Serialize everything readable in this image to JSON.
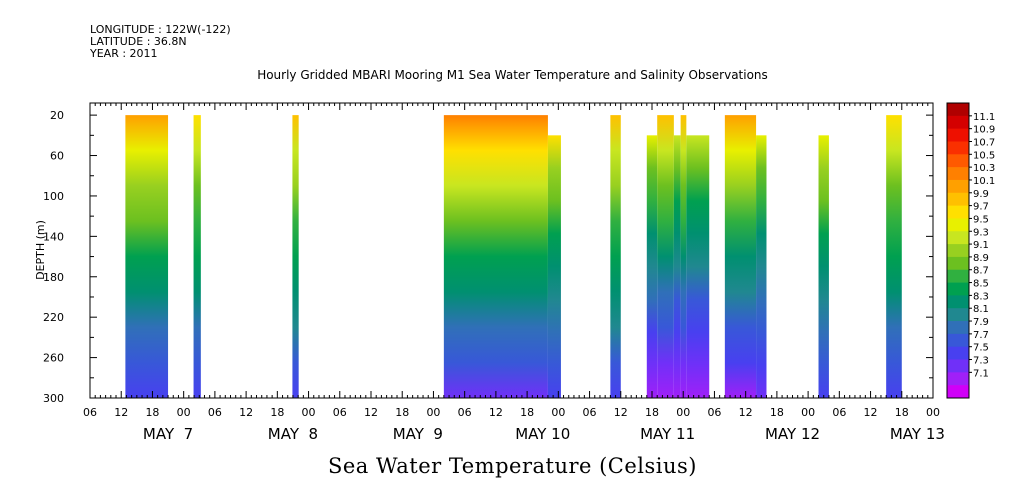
{
  "meta": {
    "longitude": "LONGITUDE : 122W(-122)",
    "latitude": "LATITUDE : 36.8N",
    "year": "YEAR : 2011"
  },
  "chart_data": {
    "type": "heatmap",
    "title": "Hourly Gridded MBARI Mooring M1 Sea Water Temperature and Salinity Observations",
    "xlabel": "Sea Water Temperature (Celsius)",
    "ylabel": "DEPTH (m)",
    "xlim_hours": [
      0,
      162
    ],
    "ylim": [
      300,
      8
    ],
    "y_ticks": [
      20,
      60,
      100,
      140,
      180,
      220,
      260,
      300
    ],
    "x_tick_labels": [
      "06",
      "12",
      "18",
      "00",
      "06",
      "12",
      "18",
      "00",
      "06",
      "12",
      "18",
      "00",
      "06",
      "12",
      "18",
      "00",
      "06",
      "12",
      "18",
      "00",
      "06",
      "12",
      "18",
      "00",
      "06",
      "12",
      "18",
      "00"
    ],
    "day_labels": [
      "MAY  7",
      "MAY  8",
      "MAY  9",
      "MAY 10",
      "MAY 11",
      "MAY 12",
      "MAY 13"
    ],
    "colorbar": {
      "labels": [
        "11.1",
        "10.9",
        "10.7",
        "10.5",
        "10.3",
        "10.1",
        "9.9",
        "9.7",
        "9.5",
        "9.3",
        "9.1",
        "8.9",
        "8.7",
        "8.5",
        "8.3",
        "8.1",
        "7.9",
        "7.7",
        "7.5",
        "7.3",
        "7.1"
      ],
      "colors": [
        "#b00000",
        "#d40000",
        "#ee1000",
        "#fa3000",
        "#ff5a00",
        "#ff8000",
        "#ffa000",
        "#ffc000",
        "#ffe000",
        "#e8f000",
        "#c8e620",
        "#98d020",
        "#6cc020",
        "#30b040",
        "#00a050",
        "#009070",
        "#208890",
        "#3070b8",
        "#3858d8",
        "#4840f0",
        "#7030f8",
        "#a020f8",
        "#d000f8"
      ],
      "min": 7.1,
      "max": 11.1
    },
    "data_blocks": [
      {
        "x0": 6.8,
        "x1": 15.0,
        "top_depth": 20,
        "surface_temp": 10.0,
        "bottom_temp": 7.6
      },
      {
        "x0": 19.9,
        "x1": 21.3,
        "top_depth": 20,
        "surface_temp": 9.7,
        "bottom_temp": 7.7
      },
      {
        "x0": 38.9,
        "x1": 40.1,
        "top_depth": 20,
        "surface_temp": 9.8,
        "bottom_temp": 7.7
      },
      {
        "x0": 68.0,
        "x1": 88.0,
        "top_depth": 20,
        "surface_temp": 10.2,
        "bottom_temp": 7.5
      },
      {
        "x0": 88.0,
        "x1": 90.5,
        "top_depth": 40,
        "surface_temp": 9.6,
        "bottom_temp": 7.6
      },
      {
        "x0": 100.0,
        "x1": 102.0,
        "top_depth": 20,
        "surface_temp": 9.8,
        "bottom_temp": 7.7
      },
      {
        "x0": 107.0,
        "x1": 109.0,
        "top_depth": 40,
        "surface_temp": 9.4,
        "bottom_temp": 7.3
      },
      {
        "x0": 109.0,
        "x1": 112.2,
        "top_depth": 20,
        "surface_temp": 9.9,
        "bottom_temp": 7.3
      },
      {
        "x0": 112.2,
        "x1": 113.5,
        "top_depth": 40,
        "surface_temp": 9.3,
        "bottom_temp": 7.3
      },
      {
        "x0": 113.5,
        "x1": 114.6,
        "top_depth": 20,
        "surface_temp": 9.9,
        "bottom_temp": 7.3
      },
      {
        "x0": 114.6,
        "x1": 119.0,
        "top_depth": 40,
        "surface_temp": 9.3,
        "bottom_temp": 7.3
      },
      {
        "x0": 122.0,
        "x1": 128.0,
        "top_depth": 20,
        "surface_temp": 10.0,
        "bottom_temp": 7.3
      },
      {
        "x0": 128.0,
        "x1": 130.0,
        "top_depth": 40,
        "surface_temp": 9.4,
        "bottom_temp": 7.4
      },
      {
        "x0": 140.0,
        "x1": 142.0,
        "top_depth": 40,
        "surface_temp": 9.5,
        "bottom_temp": 7.7
      },
      {
        "x0": 153.0,
        "x1": 156.0,
        "top_depth": 20,
        "surface_temp": 9.7,
        "bottom_temp": 7.7
      }
    ]
  }
}
